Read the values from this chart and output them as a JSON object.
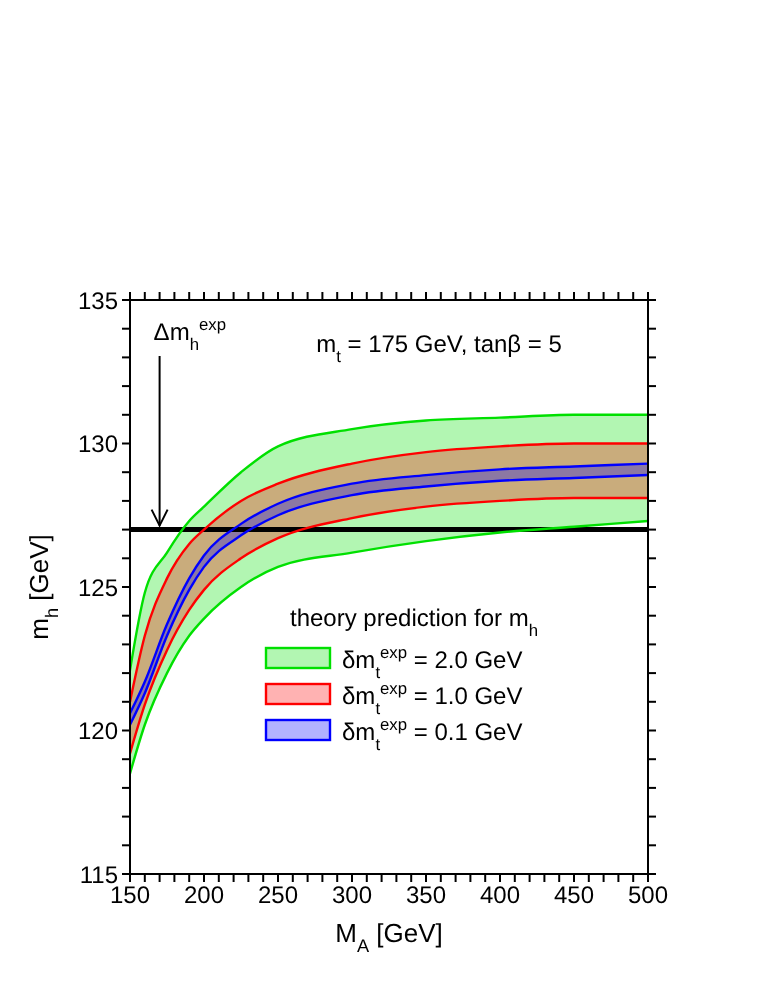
{
  "chart_data": {
    "type": "line",
    "xlabel": "M$_{A}$ [GeV]",
    "ylabel": "m$_{h}$ [GeV]",
    "legend_title": "theory prediction for m$_{h}$",
    "legend": "bottom right",
    "grid": false,
    "marker": "none",
    "line_style": "solid",
    "x": [
      150,
      160,
      175,
      190,
      200,
      225,
      250,
      300,
      350,
      400,
      450,
      500
    ],
    "xlim": [
      150,
      500
    ],
    "ylim": [
      115,
      135
    ],
    "xticks": [
      150,
      {
        "value": 160,
        "label": null
      },
      {
        "value": 170,
        "label": null
      },
      {
        "value": 180,
        "label": null
      },
      {
        "value": 190,
        "label": null
      },
      200,
      {
        "value": 210,
        "label": null
      },
      {
        "value": 220,
        "label": null
      },
      {
        "value": 230,
        "label": null
      },
      {
        "value": 240,
        "label": null
      },
      250,
      {
        "value": 260,
        "label": null
      },
      {
        "value": 270,
        "label": null
      },
      {
        "value": 280,
        "label": null
      },
      {
        "value": 290,
        "label": null
      },
      300,
      {
        "value": 310,
        "label": null
      },
      {
        "value": 320,
        "label": null
      },
      {
        "value": 330,
        "label": null
      },
      {
        "value": 340,
        "label": null
      },
      350,
      {
        "value": 360,
        "label": null
      },
      {
        "value": 370,
        "label": null
      },
      {
        "value": 380,
        "label": null
      },
      {
        "value": 390,
        "label": null
      },
      400,
      {
        "value": 410,
        "label": null
      },
      {
        "value": 420,
        "label": null
      },
      {
        "value": 430,
        "label": null
      },
      {
        "value": 440,
        "label": null
      },
      450,
      {
        "value": 460,
        "label": null
      },
      {
        "value": 470,
        "label": null
      },
      {
        "value": 480,
        "label": null
      },
      {
        "value": 490,
        "label": null
      },
      500
    ],
    "yticks": [
      115,
      {
        "value": 116,
        "label": null
      },
      {
        "value": 117,
        "label": null
      },
      {
        "value": 118,
        "label": null
      },
      {
        "value": 119,
        "label": null
      },
      120,
      {
        "value": 121,
        "label": null
      },
      {
        "value": 122,
        "label": null
      },
      {
        "value": 123,
        "label": null
      },
      {
        "value": 124,
        "label": null
      },
      125,
      {
        "value": 126,
        "label": null
      },
      {
        "value": 127,
        "label": null
      },
      {
        "value": 128,
        "label": null
      },
      {
        "value": 129,
        "label": null
      },
      130,
      {
        "value": 131,
        "label": null
      },
      {
        "value": 132,
        "label": null
      },
      {
        "value": 133,
        "label": null
      },
      {
        "value": 134,
        "label": null
      },
      135
    ],
    "series": [
      {
        "name": "δm$_{t}$$^{exp}$ = 2.0 GeV",
        "color": "#00e000",
        "values": [
          122.1,
          124.8,
          126.2,
          127.3,
          127.8,
          129.0,
          129.9,
          130.5,
          130.8,
          130.9,
          131.0,
          131.0
        ],
        "lower": [
          118.5,
          120.2,
          122.0,
          123.3,
          123.9,
          125.0,
          125.7,
          126.2,
          126.6,
          126.9,
          127.1,
          127.3
        ],
        "upper": [
          122.1,
          124.8,
          126.2,
          127.3,
          127.8,
          129.0,
          129.9,
          130.5,
          130.8,
          130.9,
          131.0,
          131.0
        ]
      },
      {
        "color": "#00e000",
        "values": [
          118.5,
          120.2,
          122.0,
          123.3,
          123.9,
          125.0,
          125.7,
          126.2,
          126.6,
          126.9,
          127.1,
          127.3
        ]
      },
      {
        "name": "δm$_{t}$$^{exp}$ = 1.0 GeV",
        "color": "#ff0000",
        "values": [
          121.0,
          123.3,
          125.3,
          126.5,
          127.0,
          128.0,
          128.6,
          129.3,
          129.7,
          129.9,
          130.0,
          130.0
        ],
        "lower": [
          119.2,
          120.9,
          122.8,
          124.2,
          124.9,
          126.0,
          126.7,
          127.4,
          127.8,
          128.0,
          128.1,
          128.1
        ],
        "upper": [
          121.0,
          123.3,
          125.3,
          126.5,
          127.0,
          128.0,
          128.6,
          129.3,
          129.7,
          129.9,
          130.0,
          130.0
        ]
      },
      {
        "color": "#ff0000",
        "values": [
          119.2,
          120.9,
          122.8,
          124.2,
          124.9,
          126.0,
          126.7,
          127.4,
          127.8,
          128.0,
          128.1,
          128.1
        ]
      },
      {
        "name": "δm$_{t}$$^{exp}$ = 0.1 GeV",
        "color": "#0000ff",
        "values": [
          120.6,
          121.7,
          123.7,
          125.3,
          126.1,
          127.2,
          127.9,
          128.6,
          128.9,
          129.1,
          129.2,
          129.3
        ],
        "lower": [
          120.2,
          121.3,
          123.3,
          124.9,
          125.7,
          126.8,
          127.5,
          128.2,
          128.5,
          128.7,
          128.8,
          128.9
        ],
        "upper": [
          120.6,
          121.7,
          123.7,
          125.3,
          126.1,
          127.2,
          127.9,
          128.6,
          128.9,
          129.1,
          129.2,
          129.3
        ]
      },
      {
        "color": "#0000ff",
        "values": [
          120.2,
          121.3,
          123.3,
          124.9,
          125.7,
          126.8,
          127.5,
          128.2,
          128.5,
          128.7,
          128.8,
          128.9
        ]
      }
    ],
    "ref_lines": [
      {
        "axis": "y",
        "value": 127,
        "color": "#000000",
        "line_style": "solid"
      }
    ],
    "annotations": [
      {
        "text": "Δm$_{h}$$^{exp}$",
        "x": 170,
        "y": 127
      },
      "m$_{t}$ = 175 GeV, tanβ = 5"
    ]
  }
}
